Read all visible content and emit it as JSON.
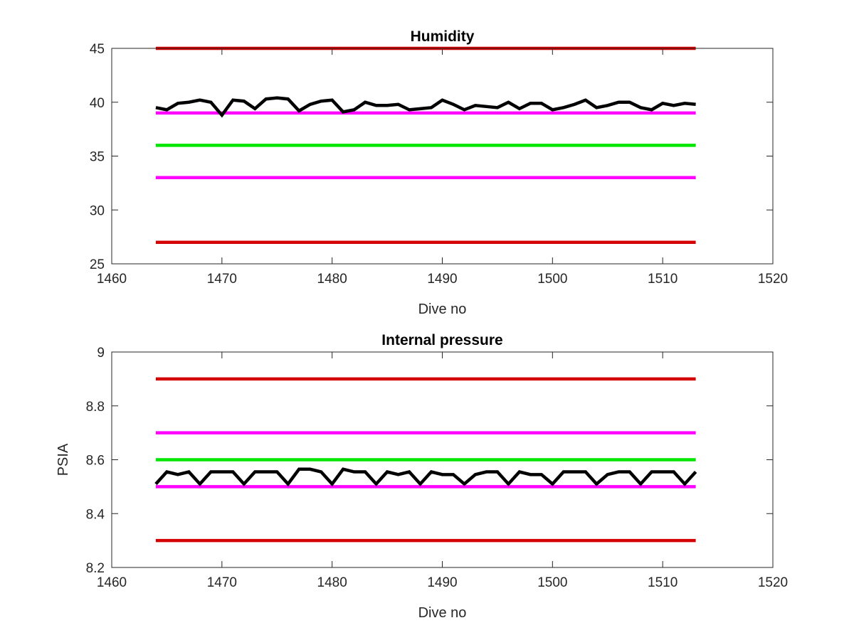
{
  "chart_data": [
    {
      "type": "line",
      "title": "Humidity",
      "xlabel": "Dive no",
      "ylabel": "",
      "xlim": [
        1460,
        1520
      ],
      "ylim": [
        25,
        45
      ],
      "xticks": [
        1460,
        1470,
        1480,
        1490,
        1500,
        1510,
        1520
      ],
      "yticks": [
        25,
        30,
        35,
        40,
        45
      ],
      "grid": false,
      "limit_lines": [
        {
          "y": 45,
          "x_range": [
            1464,
            1513
          ],
          "color": "#d40000"
        },
        {
          "y": 39,
          "x_range": [
            1464,
            1513
          ],
          "color": "#ff00ff"
        },
        {
          "y": 36,
          "x_range": [
            1464,
            1513
          ],
          "color": "#00e600"
        },
        {
          "y": 33,
          "x_range": [
            1464,
            1513
          ],
          "color": "#ff00ff"
        },
        {
          "y": 27,
          "x_range": [
            1464,
            1513
          ],
          "color": "#d40000"
        }
      ],
      "series": [
        {
          "color": "#000000",
          "x": [
            1464,
            1465,
            1466,
            1467,
            1468,
            1469,
            1470,
            1471,
            1472,
            1473,
            1474,
            1475,
            1476,
            1477,
            1478,
            1479,
            1480,
            1481,
            1482,
            1483,
            1484,
            1485,
            1486,
            1487,
            1488,
            1489,
            1490,
            1491,
            1492,
            1493,
            1494,
            1495,
            1496,
            1497,
            1498,
            1499,
            1500,
            1501,
            1502,
            1503,
            1504,
            1505,
            1506,
            1507,
            1508,
            1509,
            1510,
            1511,
            1512,
            1513
          ],
          "values": [
            39.5,
            39.3,
            39.9,
            40.0,
            40.2,
            40.0,
            38.8,
            40.2,
            40.1,
            39.4,
            40.3,
            40.4,
            40.3,
            39.2,
            39.8,
            40.1,
            40.2,
            39.1,
            39.3,
            40.0,
            39.7,
            39.7,
            39.8,
            39.3,
            39.4,
            39.5,
            40.2,
            39.8,
            39.3,
            39.7,
            39.6,
            39.5,
            40.0,
            39.4,
            39.9,
            39.9,
            39.3,
            39.5,
            39.8,
            40.2,
            39.5,
            39.7,
            40.0,
            40.0,
            39.5,
            39.3,
            39.9,
            39.7,
            39.9,
            39.8
          ]
        }
      ]
    },
    {
      "type": "line",
      "title": "Internal pressure",
      "xlabel": "Dive no",
      "ylabel": "PSIA",
      "xlim": [
        1460,
        1520
      ],
      "ylim": [
        8.2,
        9
      ],
      "xticks": [
        1460,
        1470,
        1480,
        1490,
        1500,
        1510,
        1520
      ],
      "yticks": [
        8.2,
        8.4,
        8.6,
        8.8,
        9
      ],
      "yticklabels": [
        "8.2",
        "8.4",
        "8.6",
        "8.8",
        "9"
      ],
      "grid": false,
      "limit_lines": [
        {
          "y": 8.9,
          "x_range": [
            1464,
            1513
          ],
          "color": "#d40000"
        },
        {
          "y": 8.7,
          "x_range": [
            1464,
            1513
          ],
          "color": "#ff00ff"
        },
        {
          "y": 8.6,
          "x_range": [
            1464,
            1513
          ],
          "color": "#00e600"
        },
        {
          "y": 8.5,
          "x_range": [
            1464,
            1513
          ],
          "color": "#ff00ff"
        },
        {
          "y": 8.3,
          "x_range": [
            1464,
            1513
          ],
          "color": "#d40000"
        }
      ],
      "series": [
        {
          "color": "#000000",
          "x": [
            1464,
            1465,
            1466,
            1467,
            1468,
            1469,
            1470,
            1471,
            1472,
            1473,
            1474,
            1475,
            1476,
            1477,
            1478,
            1479,
            1480,
            1481,
            1482,
            1483,
            1484,
            1485,
            1486,
            1487,
            1488,
            1489,
            1490,
            1491,
            1492,
            1493,
            1494,
            1495,
            1496,
            1497,
            1498,
            1499,
            1500,
            1501,
            1502,
            1503,
            1504,
            1505,
            1506,
            1507,
            1508,
            1509,
            1510,
            1511,
            1512,
            1513
          ],
          "values": [
            8.51,
            8.555,
            8.545,
            8.555,
            8.51,
            8.555,
            8.555,
            8.555,
            8.51,
            8.555,
            8.555,
            8.555,
            8.51,
            8.565,
            8.565,
            8.555,
            8.51,
            8.565,
            8.555,
            8.555,
            8.51,
            8.555,
            8.545,
            8.555,
            8.51,
            8.555,
            8.545,
            8.545,
            8.51,
            8.545,
            8.555,
            8.555,
            8.51,
            8.555,
            8.545,
            8.545,
            8.51,
            8.555,
            8.555,
            8.555,
            8.51,
            8.545,
            8.555,
            8.555,
            8.51,
            8.555,
            8.555,
            8.555,
            8.51,
            8.555
          ]
        }
      ]
    }
  ]
}
